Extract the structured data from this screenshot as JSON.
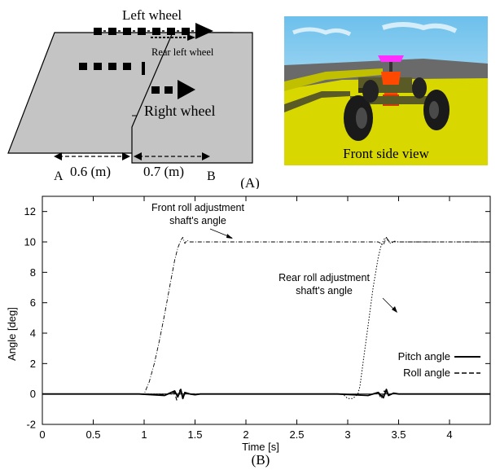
{
  "panel_a": {
    "left_wheel_label": "Left wheel",
    "rear_left_wheel_label": "Rear left wheel",
    "right_wheel_label": "Right wheel",
    "dist_a_label": "0.6 (m)",
    "dist_b_label": "0.7 (m)",
    "point_a": "A",
    "point_b": "B",
    "view_label": "Front side view",
    "caption": "(A)",
    "colors": {
      "plate": "#c4c4c4",
      "sky": "#a8d8f0",
      "ground": "#d8d800",
      "robot_top": "#ff30ff",
      "robot_body": "#ff4800",
      "frame": "#5a5a26"
    }
  },
  "chart_data": {
    "type": "line",
    "caption": "(B)",
    "xlabel": "Time [s]",
    "ylabel": "Angle [deg]",
    "xlim": [
      0,
      4.4
    ],
    "ylim": [
      -2,
      13
    ],
    "xticks": [
      "0",
      "0.5",
      "1",
      "1.5",
      "2",
      "2.5",
      "3",
      "3.5",
      "4"
    ],
    "xtick_values": [
      0,
      0.5,
      1,
      1.5,
      2,
      2.5,
      3,
      3.5,
      4
    ],
    "yticks": [
      "-2",
      "0",
      "2",
      "4",
      "6",
      "8",
      "10",
      "12"
    ],
    "ytick_values": [
      -2,
      0,
      2,
      4,
      6,
      8,
      10,
      12
    ],
    "grid": false,
    "legend": "lower-right",
    "annotations": {
      "front_line1": "Front roll adjustment",
      "front_line2": "shaft's angle",
      "rear_line1": "Rear roll adjustment",
      "rear_line2": "shaft's angle"
    },
    "series": [
      {
        "key": "front",
        "style": "dashdot",
        "x": [
          0,
          1.0,
          1.05,
          1.1,
          1.15,
          1.2,
          1.25,
          1.3,
          1.33,
          1.36,
          1.38,
          1.4,
          1.42,
          1.45,
          1.5,
          2.0,
          3.0,
          3.3,
          3.35,
          3.38,
          3.42,
          3.46,
          3.5,
          4.4
        ],
        "values": [
          0,
          0,
          0.8,
          2.0,
          3.5,
          5.2,
          7.0,
          8.8,
          9.6,
          10.1,
          10.3,
          9.9,
          10.1,
          10.0,
          10.0,
          10.0,
          10.0,
          10.0,
          9.8,
          10.3,
          9.9,
          10.05,
          10.0,
          10.0
        ]
      },
      {
        "key": "rear",
        "style": "dotted",
        "x": [
          0,
          2.95,
          3.0,
          3.05,
          3.1,
          3.12,
          3.15,
          3.2,
          3.25,
          3.3,
          3.33,
          3.36,
          3.38,
          3.4,
          3.45,
          3.5,
          4.4
        ],
        "values": [
          0,
          0,
          -0.3,
          -0.3,
          0,
          0.5,
          2.0,
          4.5,
          7.0,
          9.0,
          9.8,
          10.2,
          10.3,
          10.0,
          10.0,
          10.0,
          10.0
        ]
      },
      {
        "key": "pitch",
        "name": "Pitch angle",
        "style": "solid",
        "x": [
          0,
          0.95,
          1.2,
          1.3,
          1.33,
          1.36,
          1.38,
          1.4,
          1.45,
          1.5,
          1.55,
          2.9,
          3.05,
          3.2,
          3.3,
          3.35,
          3.38,
          3.4,
          3.45,
          3.5,
          3.6,
          4.4
        ],
        "values": [
          0,
          0,
          -0.1,
          0.2,
          -0.2,
          0.3,
          -0.3,
          0.1,
          0.0,
          -0.05,
          0,
          0,
          -0.05,
          -0.1,
          0.1,
          -0.25,
          0.3,
          -0.1,
          0.05,
          0,
          0,
          0
        ]
      },
      {
        "key": "roll",
        "name": "Roll angle",
        "style": "dashed",
        "x": [
          0,
          1.0,
          1.2,
          1.3,
          1.32,
          1.35,
          1.38,
          1.4,
          1.45,
          1.5,
          2.9,
          3.05,
          3.2,
          3.3,
          3.33,
          3.36,
          3.4,
          3.45,
          3.5,
          3.7,
          4.4
        ],
        "values": [
          0,
          0,
          -0.05,
          0.1,
          -0.4,
          0.25,
          -0.2,
          0.1,
          0,
          0,
          0,
          -0.05,
          -0.1,
          0.1,
          -0.3,
          0.2,
          -0.05,
          0.05,
          0,
          0,
          0
        ]
      }
    ]
  }
}
